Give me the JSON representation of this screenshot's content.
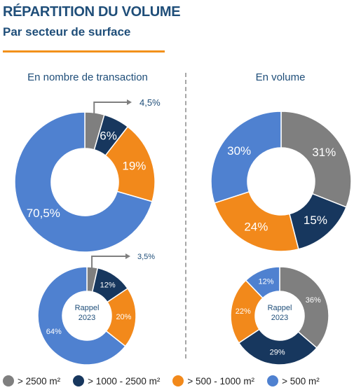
{
  "header": {
    "title": "RÉPARTITION DU VOLUME",
    "subtitle": "Par secteur de surface"
  },
  "columns": {
    "left": "En nombre de transaction",
    "right": "En volume"
  },
  "colors": {
    "> 2500 m²": "#7f7f7f",
    "> 1000 - 2500 m²": "#17375e",
    "> 500 - 1000 m²": "#f2891b",
    "> 500 m²": "#4f81d0",
    "title": "#1f4e79",
    "accent_rule": "#f2911b"
  },
  "legend": [
    "> 2500 m²",
    "> 1000 - 2500 m²",
    "> 500 - 1000 m²",
    "> 500 m²"
  ],
  "chart_data": [
    {
      "type": "pie",
      "title": "En nombre de transaction",
      "categories": [
        "> 2500 m²",
        "> 1000 - 2500 m²",
        "> 500 - 1000 m²",
        "> 500 m²"
      ],
      "values": [
        4.5,
        6,
        19,
        70.5
      ],
      "labels": [
        "4,5%",
        "6%",
        "19%",
        "70,5%"
      ]
    },
    {
      "type": "pie",
      "title": "En volume",
      "categories": [
        "> 2500 m²",
        "> 1000 - 2500 m²",
        "> 500 - 1000 m²",
        "> 500 m²"
      ],
      "values": [
        31,
        15,
        24,
        30
      ],
      "labels": [
        "31%",
        "15%",
        "24%",
        "30%"
      ]
    },
    {
      "type": "pie",
      "title": "En nombre de transaction",
      "center_label": [
        "Rappel",
        "2023"
      ],
      "categories": [
        "> 2500 m²",
        "> 1000 - 2500 m²",
        "> 500 - 1000 m²",
        "> 500 m²"
      ],
      "values": [
        3.5,
        12,
        20,
        64
      ],
      "labels": [
        "3,5%",
        "12%",
        "20%",
        "64%"
      ]
    },
    {
      "type": "pie",
      "title": "En volume",
      "center_label": [
        "Rappel",
        "2023"
      ],
      "categories": [
        "> 2500 m²",
        "> 1000 - 2500 m²",
        "> 500 - 1000 m²",
        "> 500 m²"
      ],
      "values": [
        36,
        29,
        22,
        12
      ],
      "labels": [
        "36%",
        "29%",
        "22%",
        "12%"
      ]
    }
  ]
}
